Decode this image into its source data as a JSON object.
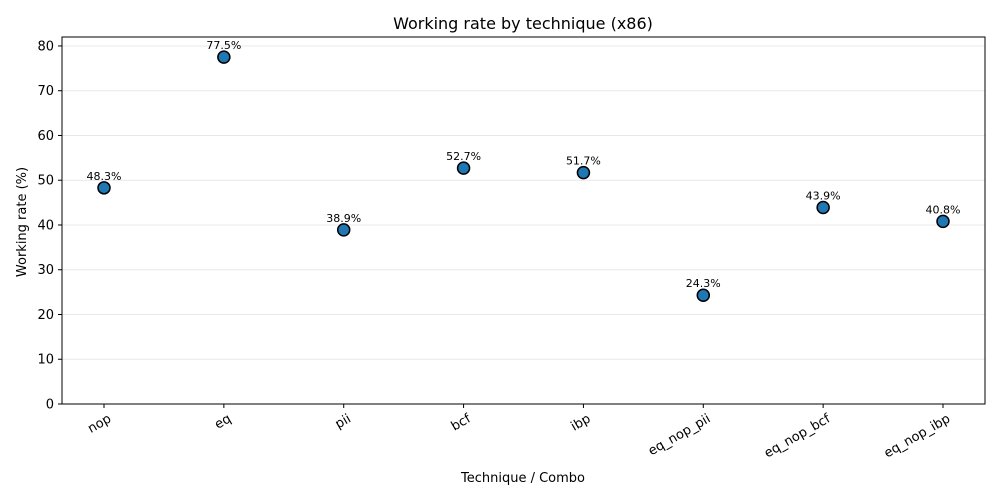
{
  "chart_data": {
    "type": "scatter",
    "title": "Working rate by technique (x86)",
    "xlabel": "Technique / Combo",
    "ylabel": "Working rate (%)",
    "categories": [
      "nop",
      "eq",
      "pii",
      "bcf",
      "ibp",
      "eq_nop_pii",
      "eq_nop_bcf",
      "eq_nop_ibp"
    ],
    "values": [
      48.3,
      77.5,
      38.9,
      52.7,
      51.7,
      24.3,
      43.9,
      40.8
    ],
    "data_labels": [
      "48.3%",
      "77.5%",
      "38.9%",
      "52.7%",
      "51.7%",
      "24.3%",
      "43.9%",
      "40.8%"
    ],
    "ylim": [
      0,
      82
    ],
    "yticks": [
      0,
      10,
      20,
      30,
      40,
      50,
      60,
      70,
      80
    ],
    "grid": "horizontal",
    "legend": "none",
    "colors": {
      "marker_fill": "#1f77b4",
      "marker_edge": "#000000",
      "grid": "#e8e8e8",
      "axis": "#000000"
    }
  }
}
